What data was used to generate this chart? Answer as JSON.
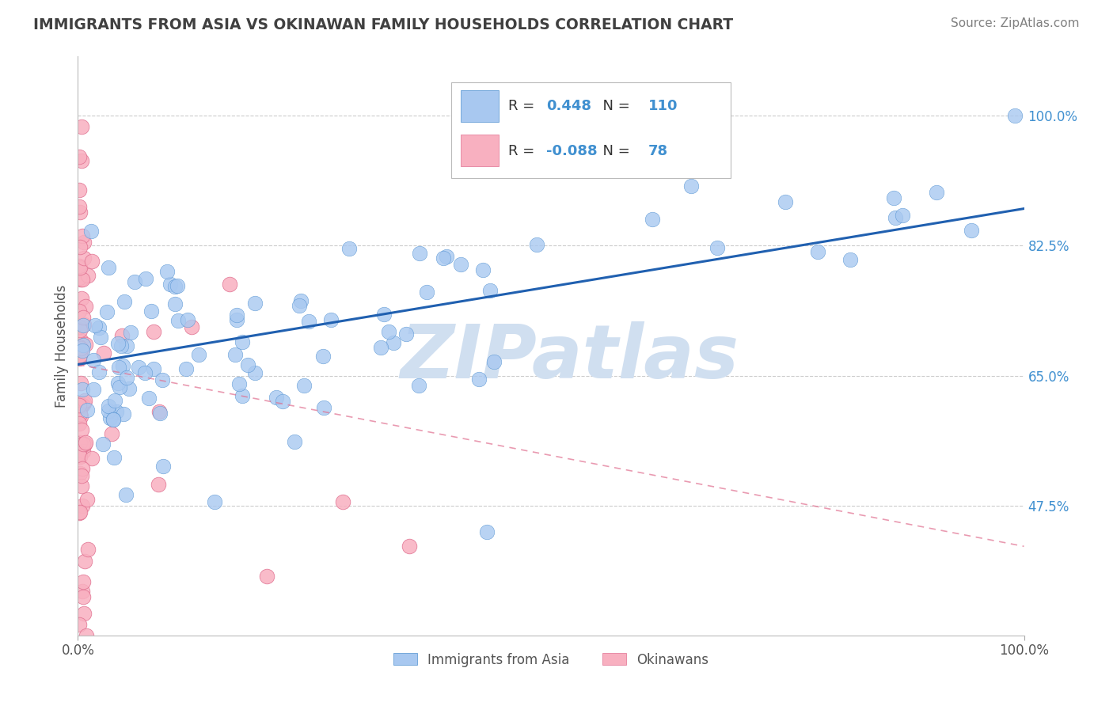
{
  "title": "IMMIGRANTS FROM ASIA VS OKINAWAN FAMILY HOUSEHOLDS CORRELATION CHART",
  "source_text": "Source: ZipAtlas.com",
  "ylabel": "Family Households",
  "legend_R_blue": "0.448",
  "legend_R_pink": "-0.088",
  "legend_N_blue": "110",
  "legend_N_pink": "78",
  "blue_fill": "#A8C8F0",
  "blue_edge": "#5090D0",
  "blue_line": "#2060B0",
  "pink_fill": "#F8B0C0",
  "pink_edge": "#E07090",
  "pink_line": "#D05070",
  "axis_tick_color": "#4090D0",
  "title_color": "#404040",
  "source_color": "#808080",
  "watermark_color": "#D0DFF0",
  "grid_color": "#CCCCCC",
  "ytick_labels": [
    "47.5%",
    "65.0%",
    "82.5%",
    "100.0%"
  ],
  "ytick_values": [
    0.475,
    0.65,
    0.825,
    1.0
  ],
  "xlim": [
    0.0,
    1.0
  ],
  "ylim": [
    0.3,
    1.08
  ],
  "blue_line_x": [
    0.0,
    1.0
  ],
  "blue_line_y": [
    0.665,
    0.875
  ],
  "pink_line_x": [
    0.0,
    1.0
  ],
  "pink_line_y": [
    0.665,
    0.42
  ],
  "figsize": [
    14.06,
    8.92
  ],
  "dpi": 100
}
